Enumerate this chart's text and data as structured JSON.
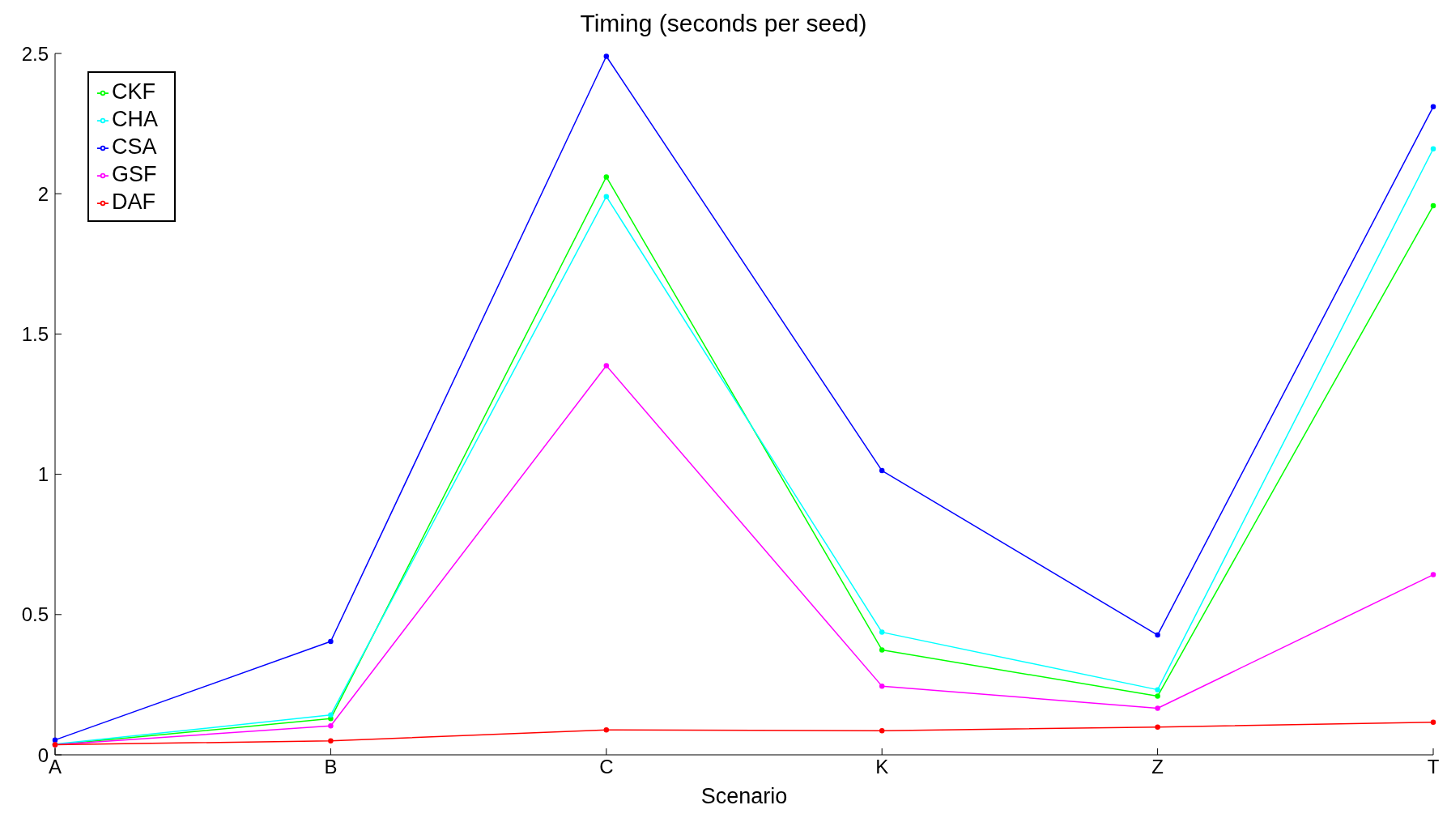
{
  "chart_data": {
    "type": "line",
    "title": "Timing (seconds per seed)",
    "xlabel": "Scenario",
    "categories": [
      "A",
      "B",
      "C",
      "K",
      "Z",
      "T"
    ],
    "series": [
      {
        "name": "CKF",
        "color": "#00ff00",
        "values": [
          0.036,
          0.129,
          2.06,
          0.374,
          0.209,
          1.957
        ]
      },
      {
        "name": "CHA",
        "color": "#00ffff",
        "values": [
          0.038,
          0.142,
          1.99,
          0.437,
          0.232,
          2.16
        ]
      },
      {
        "name": "CSA",
        "color": "#0000ff",
        "values": [
          0.053,
          0.404,
          2.49,
          1.013,
          0.427,
          2.31
        ]
      },
      {
        "name": "GSF",
        "color": "#ff00ff",
        "values": [
          0.036,
          0.103,
          1.387,
          0.245,
          0.166,
          0.642
        ]
      },
      {
        "name": "DAF",
        "color": "#ff0000",
        "values": [
          0.036,
          0.05,
          0.089,
          0.086,
          0.099,
          0.116
        ]
      }
    ],
    "ylim": [
      0,
      2.5
    ],
    "yticks": [
      0,
      0.5,
      1,
      1.5,
      2,
      2.5
    ],
    "grid": false,
    "legend": "top left",
    "marker": "circle",
    "line_style": "solid"
  }
}
